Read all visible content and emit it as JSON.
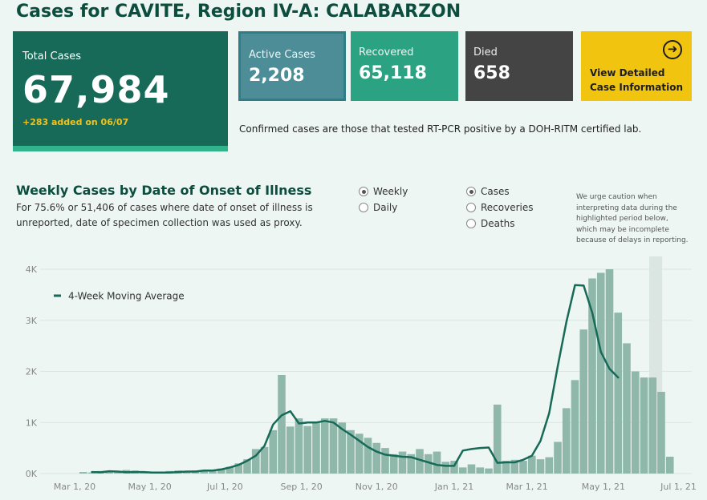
{
  "page": {
    "title": "Cases for CAVITE, Region IV-A: CALABARZON"
  },
  "total": {
    "label": "Total Cases",
    "value": "67,984",
    "added": "+283 added on 06/07"
  },
  "active": {
    "label": "Active Cases",
    "value": "2,208"
  },
  "recovered": {
    "label": "Recovered",
    "value": "65,118"
  },
  "died": {
    "label": "Died",
    "value": "658"
  },
  "detail": {
    "label": "View Detailed Case Information",
    "icon": "arrow-circle-right-icon"
  },
  "footnote": "Confirmed cases are those that tested RT-PCR positive by a DOH-RITM certified lab.",
  "colors": {
    "dark_green": "#176a57",
    "teal": "#2ba383",
    "gray": "#444444",
    "yellow": "#f1c40f",
    "bar": "#8fb8ab",
    "line": "#176a57"
  },
  "chart_header": {
    "title": "Weekly Cases by Date of Onset of Illness",
    "subtitle": "For 75.6% or 51,406 of cases where date of onset of illness is unreported, date of specimen collection was used as proxy."
  },
  "controls": {
    "interval": [
      {
        "label": "Weekly",
        "selected": true
      },
      {
        "label": "Daily",
        "selected": false
      }
    ],
    "metric": [
      {
        "label": "Cases",
        "selected": true
      },
      {
        "label": "Recoveries",
        "selected": false
      },
      {
        "label": "Deaths",
        "selected": false
      }
    ]
  },
  "caution_note": "We urge caution when interpreting data during the highlighted period below, which may be incomplete because of delays in reporting.",
  "chart_data": {
    "type": "bar",
    "title": "Weekly Cases by Date of Onset of Illness",
    "xlabel": "",
    "ylabel": "",
    "ylim": [
      0,
      4200
    ],
    "y_ticks": [
      0,
      1000,
      2000,
      3000,
      4000
    ],
    "y_tick_labels": [
      "0K",
      "1K",
      "2K",
      "3K",
      "4K"
    ],
    "x_tick_labels": [
      "Mar 1, 20",
      "May 1, 20",
      "Jul 1, 20",
      "Sep 1, 20",
      "Nov 1, 20",
      "Jan 1, 21",
      "Mar 1, 21",
      "May 1, 21",
      "Jul 1, 21"
    ],
    "x_tick_weeks": [
      0,
      8.71,
      17.43,
      26.29,
      35,
      44,
      52.43,
      61.29,
      70
    ],
    "legend": [
      {
        "label": "4-Week Moving Average",
        "type": "line"
      }
    ],
    "highlight_weeks": [
      66.6,
      68.1
    ],
    "series": [
      {
        "name": "Weekly Cases",
        "type": "bar",
        "first_week": 1,
        "values": [
          30,
          20,
          50,
          40,
          40,
          70,
          60,
          30,
          30,
          30,
          50,
          60,
          40,
          60,
          40,
          50,
          100,
          130,
          200,
          280,
          480,
          520,
          850,
          1930,
          920,
          1080,
          930,
          1000,
          1080,
          1080,
          1000,
          850,
          780,
          700,
          600,
          500,
          380,
          430,
          380,
          480,
          380,
          430,
          230,
          250,
          120,
          180,
          120,
          100,
          1350,
          250,
          270,
          250,
          350,
          280,
          320,
          620,
          1280,
          1830,
          2820,
          3820,
          3930,
          4000,
          3150,
          2550,
          2000,
          1880,
          1880,
          1600,
          330
        ]
      },
      {
        "name": "4-Week Moving Average",
        "type": "line",
        "first_week": 2,
        "values": [
          30,
          25,
          45,
          40,
          25,
          30,
          30,
          20,
          20,
          20,
          30,
          40,
          40,
          60,
          60,
          80,
          120,
          170,
          250,
          350,
          540,
          960,
          1140,
          1220,
          980,
          1000,
          1000,
          1030,
          1000,
          870,
          760,
          640,
          520,
          430,
          370,
          350,
          330,
          320,
          270,
          220,
          170,
          150,
          150,
          450,
          480,
          500,
          510,
          210,
          220,
          220,
          270,
          350,
          640,
          1180,
          2100,
          2970,
          3690,
          3680,
          3150,
          2380,
          2050,
          1880
        ]
      }
    ]
  }
}
